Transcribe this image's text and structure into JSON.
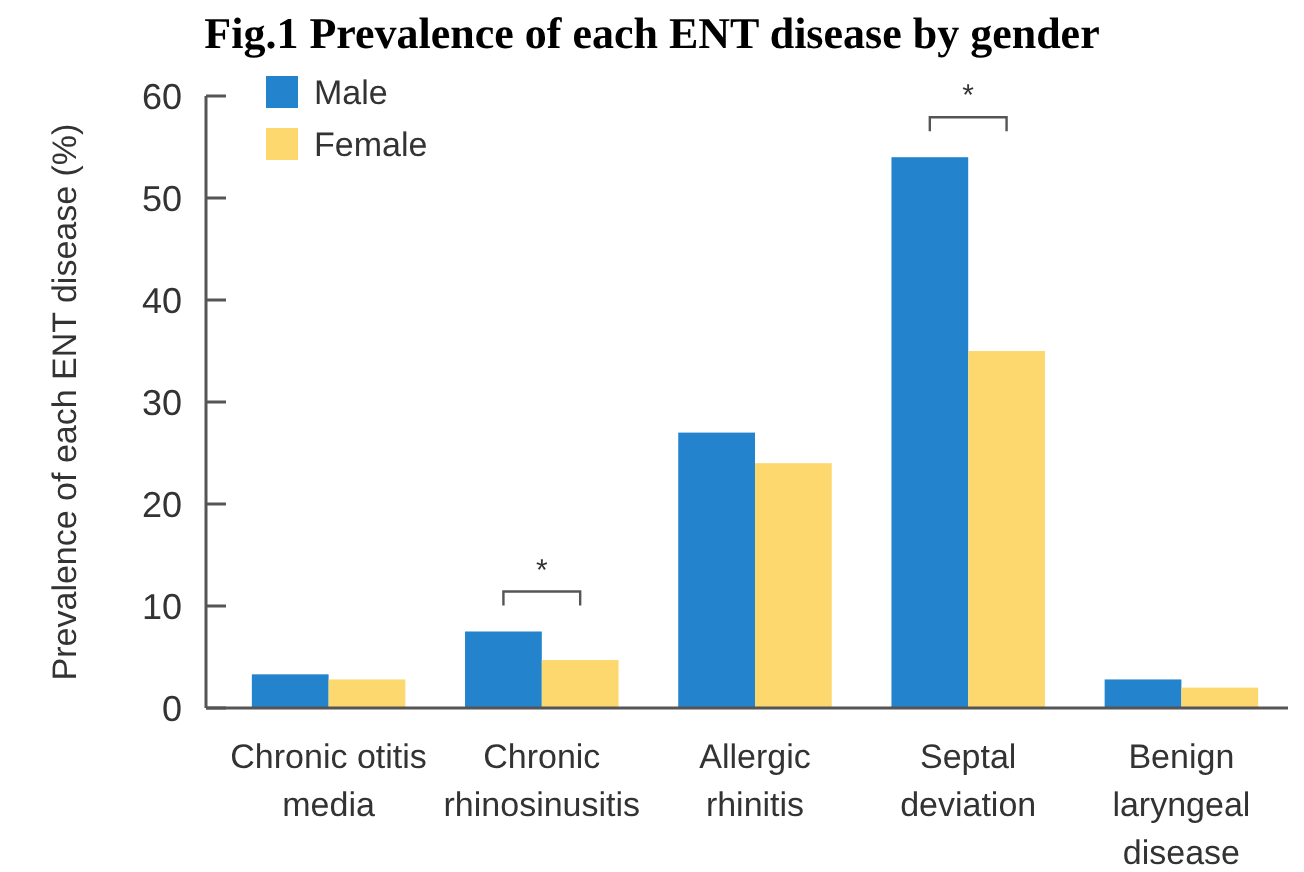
{
  "chart_data": {
    "type": "bar",
    "title": "Fig.1 Prevalence of each ENT disease by gender",
    "ylabel": "Prevalence of each ENT disease (%)",
    "categories": [
      "Chronic otitis media",
      "Chronic rhinosinusitis",
      "Allergic rhinitis",
      "Septal deviation",
      "Benign laryngeal disease"
    ],
    "series": [
      {
        "name": "Male",
        "color": "#2383cc",
        "values": [
          3.3,
          7.5,
          27,
          54,
          2.8
        ]
      },
      {
        "name": "Female",
        "color": "#fdd86e",
        "values": [
          2.8,
          4.7,
          24,
          35,
          2.0
        ]
      }
    ],
    "ylim": [
      0,
      60
    ],
    "yticks": [
      0,
      10,
      20,
      30,
      40,
      50,
      60
    ],
    "legend": "top left",
    "annotations": [
      "*",
      "*"
    ]
  }
}
